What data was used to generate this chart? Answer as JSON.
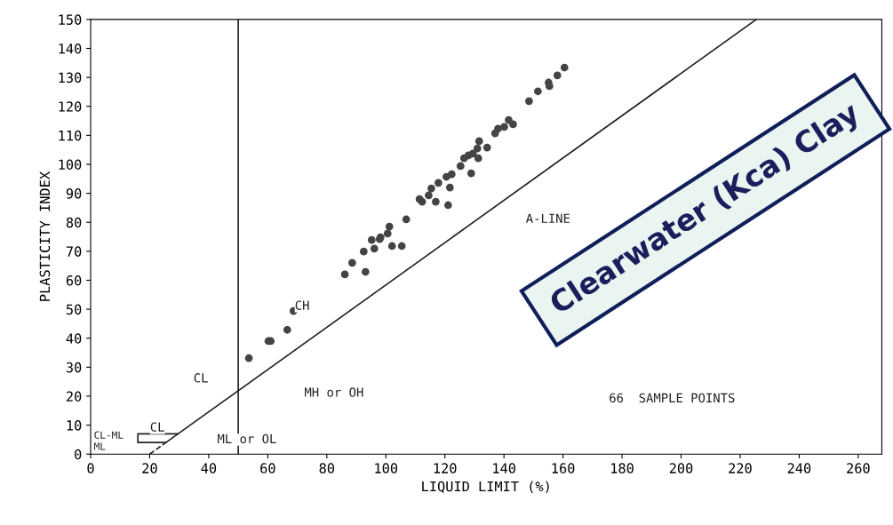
{
  "chart_data": {
    "type": "scatter",
    "title": "Clearwater (Kca) Clay",
    "xlabel": "LIQUID LIMIT (%)",
    "ylabel": "PLASTICITY INDEX",
    "xlim": [
      0,
      268
    ],
    "ylim": [
      0,
      150
    ],
    "xticks": [
      0,
      20,
      40,
      60,
      80,
      100,
      120,
      140,
      160,
      180,
      200,
      220,
      240,
      260
    ],
    "yticks": [
      0,
      10,
      20,
      30,
      40,
      50,
      60,
      70,
      80,
      90,
      100,
      110,
      120,
      130,
      140,
      150
    ],
    "grid": false,
    "legend": false,
    "series": [
      {
        "color": "#444444",
        "marker": "circle",
        "x": [
          53.6,
          60.2,
          61.0,
          66.6,
          68.7,
          86.1,
          88.6,
          93.1,
          92.5,
          95.2,
          96.1,
          97.9,
          98.2,
          100.6,
          101.2,
          102.1,
          105.4,
          106.9,
          111.4,
          112.3,
          114.5,
          116.9,
          121.1,
          115.4,
          117.8,
          120.5,
          122.3,
          121.7,
          125.3,
          126.5,
          128.0,
          129.5,
          131.3,
          128.9,
          131.0,
          131.6,
          134.3,
          137.0,
          138.0,
          140.1,
          141.6,
          143.1,
          148.5,
          151.5,
          155.1,
          155.4,
          158.1,
          160.5
        ],
        "values": [
          33.1,
          39.0,
          39.0,
          42.9,
          49.4,
          62.0,
          66.0,
          62.9,
          69.9,
          73.9,
          70.9,
          74.2,
          74.8,
          76.1,
          78.5,
          71.8,
          71.8,
          81.0,
          88.0,
          87.1,
          89.3,
          87.1,
          85.9,
          91.7,
          93.6,
          95.7,
          96.6,
          92.0,
          99.4,
          102.1,
          103.1,
          103.7,
          102.1,
          96.9,
          105.5,
          108.0,
          105.8,
          110.7,
          112.3,
          112.9,
          115.3,
          113.8,
          121.8,
          125.2,
          128.2,
          127.0,
          130.7,
          133.4
        ]
      },
      {
        "type": "line",
        "color": "#222222",
        "line_style": "solid",
        "x": [
          25.5,
          225.5
        ],
        "values": [
          4,
          150
        ]
      },
      {
        "type": "line",
        "color": "#222222",
        "line_style": "dashed",
        "x": [
          20,
          25.5
        ],
        "values": [
          0,
          4
        ]
      },
      {
        "type": "line",
        "color": "#222222",
        "line_style": "solid",
        "x": [
          29.6,
          16,
          16,
          25.5
        ],
        "values": [
          7,
          7,
          4,
          4
        ]
      }
    ],
    "ref_lines": [
      {
        "axis": "x",
        "value": 50,
        "color": "#222222"
      }
    ],
    "annotations": [
      "CH",
      "CL",
      "MH or OH",
      "A-LINE",
      "66  SAMPLE POINTS",
      "CL",
      "CL-ML",
      "ML",
      "ML or OL"
    ]
  }
}
